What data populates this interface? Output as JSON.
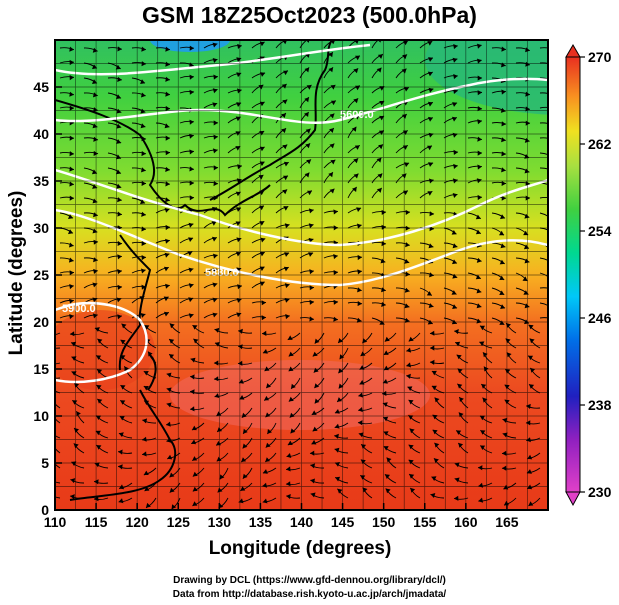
{
  "title": "GSM 18Z25Oct2023 (500.0hPa)",
  "axes": {
    "xlabel": "Longitude (degrees)",
    "ylabel": "Latitude  (degrees)",
    "x_ticks": [
      "110",
      "115",
      "120",
      "125",
      "130",
      "135",
      "140",
      "145",
      "150",
      "155",
      "160",
      "165"
    ],
    "y_ticks": [
      "0",
      "5",
      "10",
      "15",
      "20",
      "25",
      "30",
      "35",
      "40",
      "45"
    ],
    "xlim": [
      110,
      170
    ],
    "ylim": [
      0,
      50
    ]
  },
  "colorbar": {
    "range": [
      230,
      270
    ],
    "tick_labels": [
      "270",
      "262",
      "254",
      "246",
      "238",
      "230"
    ],
    "palette": [
      "#e040c8",
      "#a020c0",
      "#2020c0",
      "#0060e0",
      "#00c0ff",
      "#00e0a0",
      "#40d040",
      "#a0e040",
      "#f0e020",
      "#f8a020",
      "#f06020",
      "#e83020"
    ]
  },
  "contours": {
    "labels": [
      "5900.0",
      "5880.0",
      "5700.0",
      "5600.0"
    ]
  },
  "credits": {
    "line1": "Drawing by DCL (https://www.gfd-dennou.org/library/dcl/)",
    "line2": "Data from http://database.rish.kyoto-u.ac.jp/arch/jmadata/"
  }
}
